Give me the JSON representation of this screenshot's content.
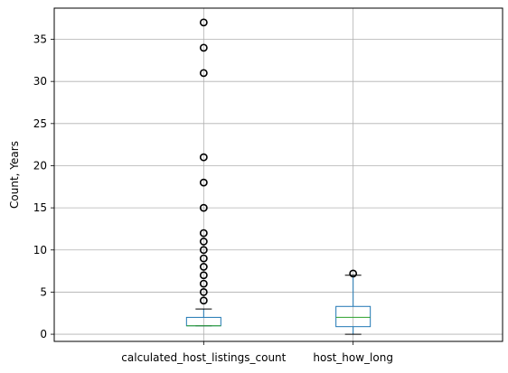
{
  "chart_data": {
    "type": "boxplot",
    "title": "",
    "xlabel": "",
    "ylabel": "Count, Years",
    "ylim": [
      -0.85,
      38.7
    ],
    "yticks": [
      0,
      5,
      10,
      15,
      20,
      25,
      30,
      35
    ],
    "grid": true,
    "categories": [
      "calculated_host_listings_count",
      "host_how_long"
    ],
    "boxes": [
      {
        "name": "calculated_host_listings_count",
        "whisker_low": 1,
        "q1": 1,
        "median": 1,
        "q3": 2,
        "whisker_high": 3,
        "outliers": [
          4,
          5,
          6,
          7,
          8,
          9,
          10,
          11,
          12,
          15,
          18,
          21,
          31,
          34,
          37
        ]
      },
      {
        "name": "host_how_long",
        "whisker_low": 0,
        "q1": 0.9,
        "median": 2.0,
        "q3": 3.3,
        "whisker_high": 7.0,
        "outliers": [
          7.2
        ]
      }
    ],
    "colors": {
      "box": "#1f77b4",
      "median": "#2ca02c",
      "whisker": "#000000",
      "grid": "#b0b0b0",
      "outlier": "#000000"
    }
  }
}
